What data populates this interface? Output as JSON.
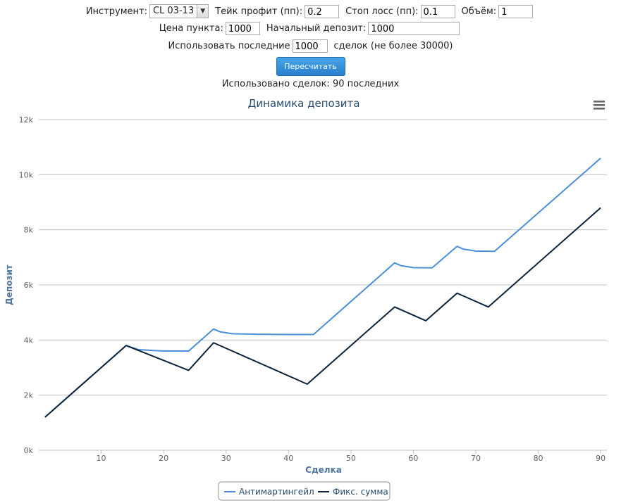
{
  "form": {
    "instrument_label": "Инструмент:",
    "instrument_value": "CL 03-13",
    "take_profit_label": "Тейк профит (пп):",
    "take_profit_value": "0.2",
    "stop_loss_label": "Стоп лосс (пп):",
    "stop_loss_value": "0.1",
    "volume_label": "Объём:",
    "volume_value": "1",
    "point_price_label": "Цена пункта:",
    "point_price_value": "1000",
    "initial_deposit_label": "Начальный депозит:",
    "initial_deposit_value": "1000",
    "use_last_label": "Использовать последние",
    "use_last_value": "1000",
    "use_last_suffix": "сделок (не более 30000)",
    "recalc_label": "Пересчитать",
    "status_text": "Использовано сделок: 90 последних"
  },
  "colors": {
    "antimartingale": "#4a8fd8",
    "fixed": "#0d233a",
    "grid": "#c0c0c0"
  },
  "chart_data": {
    "type": "line",
    "title": "Динамика депозита",
    "xlabel": "Сделка",
    "ylabel": "Депозит",
    "xlim": [
      0,
      91
    ],
    "ylim": [
      0,
      12000
    ],
    "xticks": [
      10,
      20,
      30,
      40,
      50,
      60,
      70,
      80,
      90
    ],
    "xtick_labels": [
      "10",
      "20",
      "30",
      "40",
      "50",
      "60",
      "70",
      "80",
      "90"
    ],
    "yticks": [
      0,
      2000,
      4000,
      6000,
      8000,
      10000,
      12000
    ],
    "ytick_labels": [
      "0k",
      "2k",
      "4k",
      "6k",
      "8k",
      "10k",
      "12k"
    ],
    "grid": true,
    "legend": "bottom-center",
    "menu_icon": "hamburger-menu-icon",
    "series": [
      {
        "name": "Антимартингейл",
        "points": [
          [
            1,
            1200
          ],
          [
            14,
            3800
          ],
          [
            16,
            3650
          ],
          [
            20,
            3600
          ],
          [
            24,
            3600
          ],
          [
            28,
            4400
          ],
          [
            29,
            4300
          ],
          [
            31,
            4230
          ],
          [
            35,
            4210
          ],
          [
            40,
            4200
          ],
          [
            44,
            4200
          ],
          [
            57,
            6800
          ],
          [
            58,
            6700
          ],
          [
            60,
            6630
          ],
          [
            63,
            6620
          ],
          [
            67,
            7400
          ],
          [
            68,
            7300
          ],
          [
            70,
            7230
          ],
          [
            73,
            7220
          ],
          [
            90,
            10600
          ]
        ]
      },
      {
        "name": "Фикс. сумма",
        "points": [
          [
            1,
            1200
          ],
          [
            14,
            3800
          ],
          [
            24,
            2900
          ],
          [
            28,
            3900
          ],
          [
            43,
            2400
          ],
          [
            57,
            5200
          ],
          [
            62,
            4700
          ],
          [
            67,
            5700
          ],
          [
            72,
            5200
          ],
          [
            90,
            8800
          ]
        ]
      }
    ]
  }
}
